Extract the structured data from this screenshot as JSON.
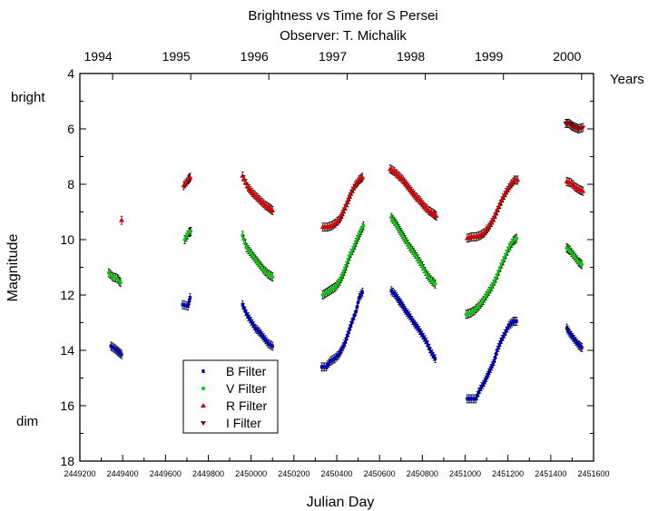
{
  "chart_data": {
    "type": "scatter",
    "title": "Brightness vs Time for S Persei",
    "subtitle": "Observer: T. Michalik",
    "xlabel": "Julian Day",
    "ylabel": "Magnitude",
    "top_axis_label": "Years",
    "bright_label": "bright",
    "dim_label": "dim",
    "xlim": [
      2449200,
      2451600
    ],
    "ylim": [
      4,
      18
    ],
    "y_inverted": true,
    "x_ticks": [
      "2449200",
      "2449400",
      "2449600",
      "2449800",
      "2450000",
      "2450200",
      "2450400",
      "2450600",
      "2450800",
      "2451000",
      "2451200",
      "2451400",
      "2451600"
    ],
    "y_ticks": [
      "4",
      "6",
      "8",
      "10",
      "12",
      "14",
      "16",
      "18"
    ],
    "year_ticks": [
      {
        "label": "1994",
        "jd": 2449353
      },
      {
        "label": "1995",
        "jd": 2449718
      },
      {
        "label": "1996",
        "jd": 2450083
      },
      {
        "label": "1997",
        "jd": 2450449
      },
      {
        "label": "1998",
        "jd": 2450814
      },
      {
        "label": "1999",
        "jd": 2451179
      },
      {
        "label": "2000",
        "jd": 2451544
      }
    ],
    "grid": false,
    "legend_position": "bottom-left",
    "series": [
      {
        "name": "B Filter",
        "color": "#0000cc",
        "marker": "square",
        "segments": [
          [
            [
              2449345,
              13.85
            ],
            [
              2449365,
              13.95
            ],
            [
              2449380,
              14.05
            ],
            [
              2449395,
              14.15
            ]
          ],
          [
            [
              2449680,
              12.35
            ],
            [
              2449705,
              12.4
            ],
            [
              2449715,
              12.1
            ]
          ],
          [
            [
              2449960,
              12.35
            ],
            [
              2449980,
              12.7
            ],
            [
              2450000,
              12.95
            ],
            [
              2450020,
              13.2
            ],
            [
              2450040,
              13.35
            ],
            [
              2450060,
              13.55
            ],
            [
              2450080,
              13.75
            ],
            [
              2450100,
              13.85
            ]
          ],
          [
            [
              2450330,
              14.6
            ],
            [
              2450350,
              14.6
            ],
            [
              2450370,
              14.4
            ],
            [
              2450390,
              14.3
            ],
            [
              2450410,
              14.15
            ],
            [
              2450425,
              13.95
            ],
            [
              2450440,
              13.7
            ],
            [
              2450455,
              13.35
            ],
            [
              2450470,
              13.0
            ],
            [
              2450490,
              12.6
            ],
            [
              2450505,
              12.1
            ],
            [
              2450520,
              11.9
            ]
          ],
          [
            [
              2450655,
              11.85
            ],
            [
              2450675,
              12.0
            ],
            [
              2450690,
              12.2
            ],
            [
              2450705,
              12.35
            ],
            [
              2450720,
              12.55
            ],
            [
              2450740,
              12.75
            ],
            [
              2450760,
              13.0
            ],
            [
              2450780,
              13.2
            ],
            [
              2450800,
              13.45
            ],
            [
              2450820,
              13.7
            ],
            [
              2450840,
              14.05
            ],
            [
              2450860,
              14.3
            ]
          ],
          [
            [
              2451010,
              15.75
            ],
            [
              2451030,
              15.75
            ],
            [
              2451050,
              15.75
            ],
            [
              2451070,
              15.4
            ],
            [
              2451090,
              15.15
            ],
            [
              2451105,
              14.9
            ],
            [
              2451120,
              14.65
            ],
            [
              2451135,
              14.4
            ],
            [
              2451150,
              14.0
            ],
            [
              2451165,
              13.7
            ],
            [
              2451185,
              13.4
            ],
            [
              2451205,
              13.1
            ],
            [
              2451225,
              12.95
            ],
            [
              2451240,
              12.95
            ]
          ],
          [
            [
              2451475,
              13.2
            ],
            [
              2451490,
              13.4
            ],
            [
              2451510,
              13.6
            ],
            [
              2451530,
              13.8
            ],
            [
              2451545,
              13.9
            ]
          ]
        ]
      },
      {
        "name": "V Filter",
        "color": "#00d000",
        "marker": "circle",
        "segments": [
          [
            [
              2449335,
              11.2
            ],
            [
              2449355,
              11.35
            ],
            [
              2449375,
              11.4
            ],
            [
              2449390,
              11.55
            ]
          ],
          [
            [
              2449690,
              10.0
            ],
            [
              2449710,
              9.75
            ],
            [
              2449718,
              9.7
            ]
          ],
          [
            [
              2449960,
              9.85
            ],
            [
              2449980,
              10.3
            ],
            [
              2450000,
              10.5
            ],
            [
              2450020,
              10.7
            ],
            [
              2450040,
              10.9
            ],
            [
              2450060,
              11.1
            ],
            [
              2450080,
              11.25
            ],
            [
              2450100,
              11.35
            ]
          ],
          [
            [
              2450335,
              12.0
            ],
            [
              2450355,
              11.9
            ],
            [
              2450375,
              11.8
            ],
            [
              2450395,
              11.7
            ],
            [
              2450415,
              11.5
            ],
            [
              2450430,
              11.25
            ],
            [
              2450445,
              10.95
            ],
            [
              2450460,
              10.6
            ],
            [
              2450480,
              10.3
            ],
            [
              2450495,
              10.0
            ],
            [
              2450510,
              9.75
            ],
            [
              2450525,
              9.5
            ]
          ],
          [
            [
              2450655,
              9.2
            ],
            [
              2450675,
              9.4
            ],
            [
              2450690,
              9.6
            ],
            [
              2450705,
              9.8
            ],
            [
              2450720,
              10.0
            ],
            [
              2450740,
              10.25
            ],
            [
              2450760,
              10.45
            ],
            [
              2450780,
              10.7
            ],
            [
              2450800,
              10.95
            ],
            [
              2450820,
              11.25
            ],
            [
              2450840,
              11.45
            ],
            [
              2450860,
              11.6
            ]
          ],
          [
            [
              2451005,
              12.7
            ],
            [
              2451025,
              12.65
            ],
            [
              2451045,
              12.55
            ],
            [
              2451065,
              12.4
            ],
            [
              2451085,
              12.2
            ],
            [
              2451105,
              11.95
            ],
            [
              2451125,
              11.7
            ],
            [
              2451145,
              11.4
            ],
            [
              2451165,
              11.0
            ],
            [
              2451185,
              10.65
            ],
            [
              2451205,
              10.3
            ],
            [
              2451225,
              10.05
            ],
            [
              2451240,
              9.95
            ]
          ],
          [
            [
              2451475,
              10.3
            ],
            [
              2451490,
              10.4
            ],
            [
              2451510,
              10.6
            ],
            [
              2451530,
              10.8
            ],
            [
              2451545,
              10.9
            ]
          ]
        ]
      },
      {
        "name": "R Filter",
        "color": "#e00000",
        "marker": "triangle-up",
        "segments": [
          [
            [
              2449395,
              9.3
            ]
          ],
          [
            [
              2449685,
              8.05
            ],
            [
              2449705,
              7.85
            ],
            [
              2449715,
              7.75
            ]
          ],
          [
            [
              2449960,
              7.7
            ],
            [
              2449985,
              8.1
            ],
            [
              2450005,
              8.3
            ],
            [
              2450025,
              8.45
            ],
            [
              2450045,
              8.6
            ],
            [
              2450065,
              8.75
            ],
            [
              2450085,
              8.85
            ],
            [
              2450100,
              8.95
            ]
          ],
          [
            [
              2450335,
              9.55
            ],
            [
              2450355,
              9.55
            ],
            [
              2450375,
              9.5
            ],
            [
              2450395,
              9.4
            ],
            [
              2450415,
              9.25
            ],
            [
              2450430,
              9.0
            ],
            [
              2450450,
              8.65
            ],
            [
              2450465,
              8.35
            ],
            [
              2450485,
              8.05
            ],
            [
              2450505,
              7.85
            ],
            [
              2450520,
              7.75
            ]
          ],
          [
            [
              2450650,
              7.45
            ],
            [
              2450670,
              7.55
            ],
            [
              2450690,
              7.7
            ],
            [
              2450710,
              7.85
            ],
            [
              2450730,
              8.05
            ],
            [
              2450750,
              8.25
            ],
            [
              2450770,
              8.45
            ],
            [
              2450790,
              8.6
            ],
            [
              2450810,
              8.8
            ],
            [
              2450830,
              8.95
            ],
            [
              2450850,
              9.05
            ],
            [
              2450865,
              9.15
            ]
          ],
          [
            [
              2451010,
              9.95
            ],
            [
              2451030,
              9.9
            ],
            [
              2451050,
              9.9
            ],
            [
              2451070,
              9.85
            ],
            [
              2451090,
              9.75
            ],
            [
              2451110,
              9.55
            ],
            [
              2451130,
              9.3
            ],
            [
              2451150,
              8.95
            ],
            [
              2451170,
              8.6
            ],
            [
              2451190,
              8.3
            ],
            [
              2451210,
              8.05
            ],
            [
              2451230,
              7.85
            ],
            [
              2451245,
              7.85
            ]
          ],
          [
            [
              2451475,
              7.9
            ],
            [
              2451495,
              7.95
            ],
            [
              2451515,
              8.1
            ],
            [
              2451535,
              8.2
            ],
            [
              2451550,
              8.25
            ]
          ]
        ]
      },
      {
        "name": "I Filter",
        "color": "#990000",
        "marker": "triangle-down",
        "segments": [
          [
            [
              2451470,
              5.8
            ],
            [
              2451485,
              5.8
            ],
            [
              2451500,
              5.9
            ],
            [
              2451515,
              5.95
            ],
            [
              2451530,
              6.0
            ],
            [
              2451550,
              5.95
            ]
          ]
        ]
      }
    ]
  }
}
